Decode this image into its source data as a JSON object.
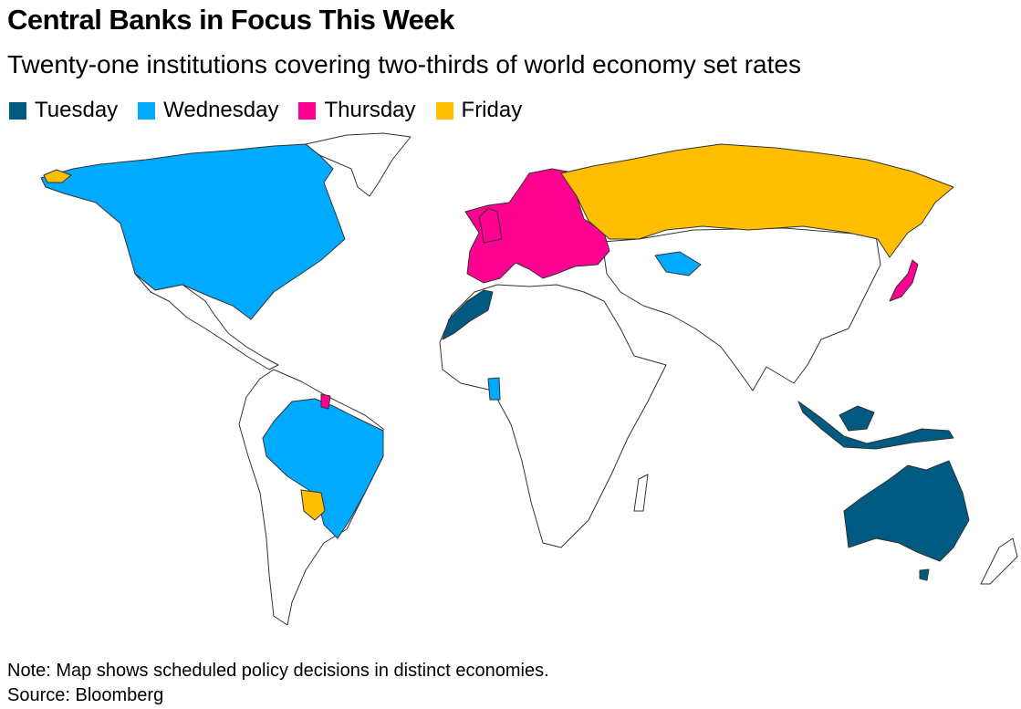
{
  "title": "Central Banks in Focus This Week",
  "subtitle": "Twenty-one institutions covering two-thirds of world economy set rates",
  "legend": [
    {
      "label": "Tuesday",
      "color": "#005a82"
    },
    {
      "label": "Wednesday",
      "color": "#00aaff"
    },
    {
      "label": "Thursday",
      "color": "#ff0090"
    },
    {
      "label": "Friday",
      "color": "#ffbf00"
    }
  ],
  "base_color": "#ffffff",
  "note": "Note: Map shows scheduled policy decisions in distinct economies.",
  "source": "Source: Bloomberg"
}
